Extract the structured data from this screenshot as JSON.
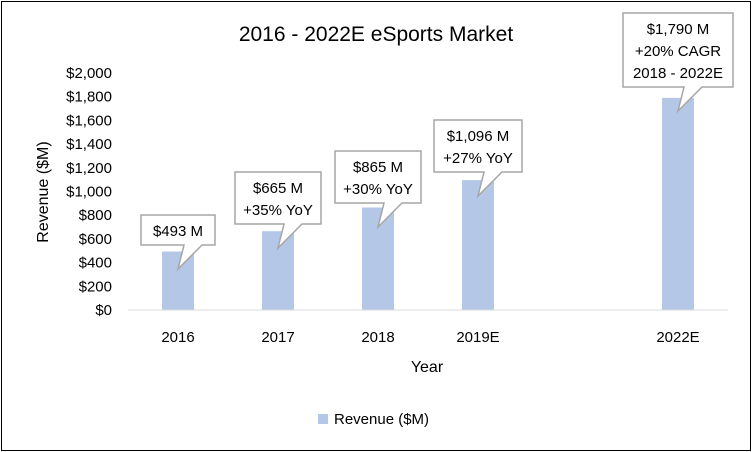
{
  "chart_data": {
    "type": "bar",
    "title": "2016 - 2022E eSports Market",
    "xlabel": "Year",
    "ylabel": "Revenue ($M)",
    "categories": [
      "2016",
      "2017",
      "2018",
      "2019E",
      "2022E"
    ],
    "series": [
      {
        "name": "Revenue ($M)",
        "values": [
          493,
          665,
          865,
          1096,
          1790
        ],
        "color": "#B4C7E7"
      }
    ],
    "y_ticks": [
      "$0",
      "$200",
      "$400",
      "$600",
      "$800",
      "$1,000",
      "$1,200",
      "$1,400",
      "$1,600",
      "$1,800",
      "$2,000"
    ],
    "ylim": [
      0,
      2000
    ],
    "grid": false,
    "legend_position": "bottom",
    "annotations": [
      {
        "category": "2016",
        "lines": [
          "$493 M"
        ]
      },
      {
        "category": "2017",
        "lines": [
          "$665 M",
          "+35% YoY"
        ]
      },
      {
        "category": "2018",
        "lines": [
          "$865 M",
          "+30% YoY"
        ]
      },
      {
        "category": "2019E",
        "lines": [
          "$1,096 M",
          "+27% YoY"
        ]
      },
      {
        "category": "2022E",
        "lines": [
          "$1,790 M",
          "+20% CAGR",
          "2018 - 2022E"
        ]
      }
    ]
  }
}
